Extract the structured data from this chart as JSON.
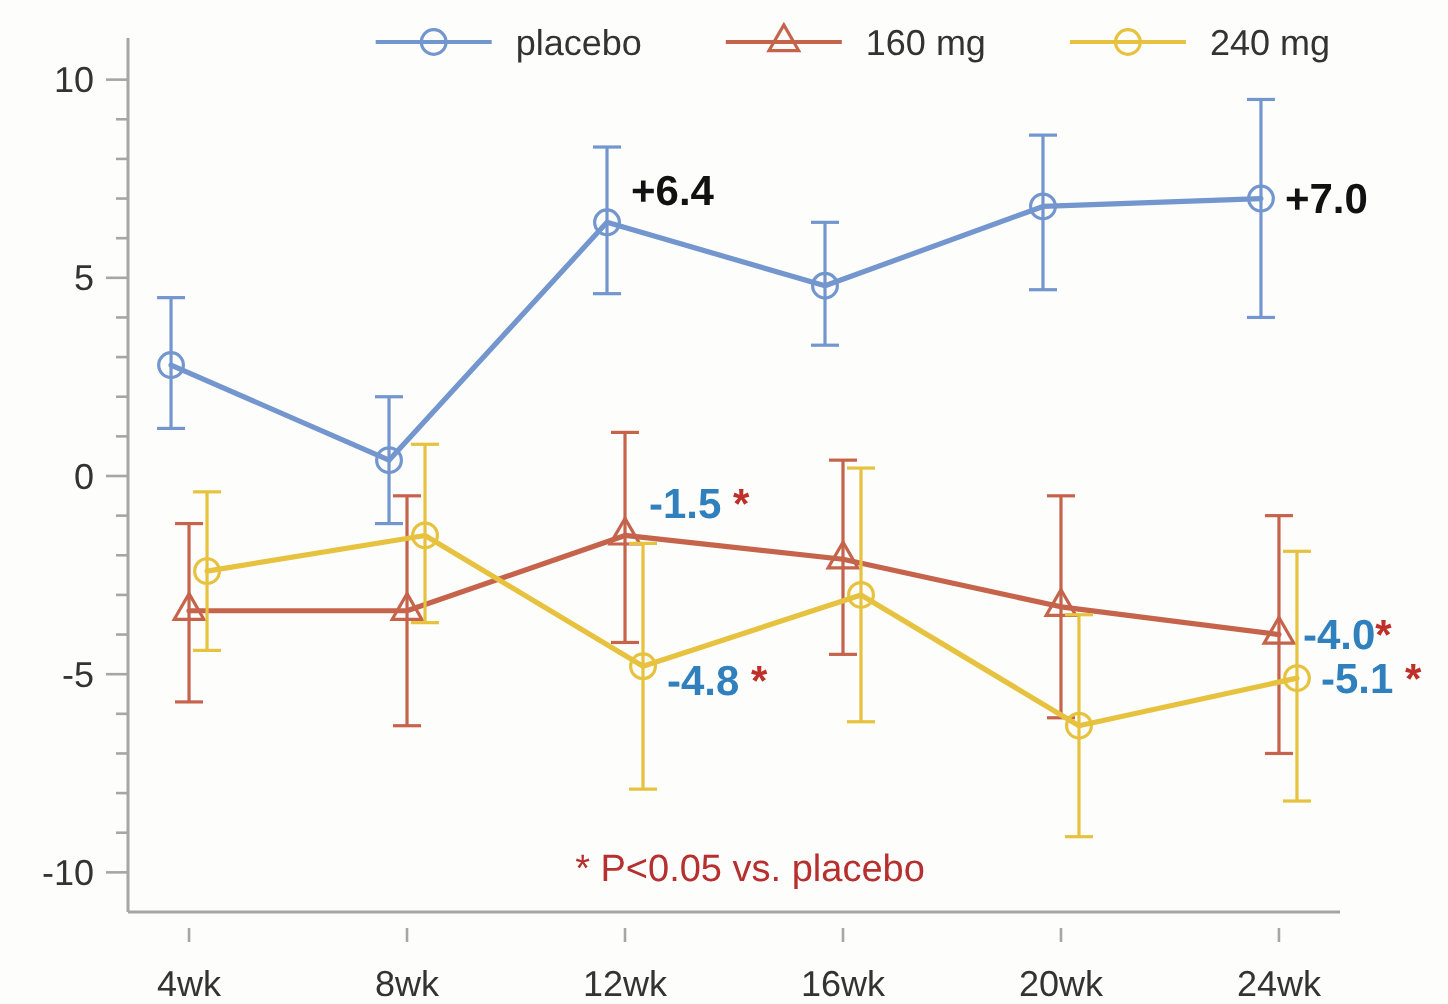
{
  "chart_data": {
    "type": "line",
    "categories": [
      "4wk",
      "8wk",
      "12wk",
      "16wk",
      "20wk",
      "24wk"
    ],
    "series": [
      {
        "name": "placebo",
        "color": "#7396cf",
        "marker": "circle",
        "values": [
          2.8,
          0.4,
          6.4,
          4.8,
          6.8,
          7.0
        ],
        "errors": [
          [
            1.2,
            4.5
          ],
          [
            -1.2,
            2.0
          ],
          [
            4.6,
            8.3
          ],
          [
            3.3,
            6.4
          ],
          [
            4.7,
            8.6
          ],
          [
            4.0,
            9.5
          ]
        ],
        "value_labels": [
          null,
          null,
          "+6.4",
          null,
          null,
          "+7.0"
        ]
      },
      {
        "name": "160 mg",
        "color": "#c5634b",
        "marker": "triangle",
        "values": [
          -3.4,
          -3.4,
          -1.5,
          -2.1,
          -3.3,
          -4.0
        ],
        "errors": [
          [
            -5.7,
            -1.2
          ],
          [
            -6.3,
            -0.5
          ],
          [
            -4.2,
            1.1
          ],
          [
            -4.5,
            0.4
          ],
          [
            -6.1,
            -0.5
          ],
          [
            -7.0,
            -1.0
          ]
        ],
        "value_labels": [
          null,
          null,
          "-1.5 *",
          null,
          null,
          "-4.0*"
        ]
      },
      {
        "name": "240 mg",
        "color": "#e6c23e",
        "marker": "circle",
        "values": [
          -2.4,
          -1.5,
          -4.8,
          -3.0,
          -6.3,
          -5.1
        ],
        "errors": [
          [
            -4.4,
            -0.4
          ],
          [
            -3.7,
            0.8
          ],
          [
            -7.9,
            -1.7
          ],
          [
            -6.2,
            0.2
          ],
          [
            -9.1,
            -3.5
          ],
          [
            -8.2,
            -1.9
          ]
        ],
        "value_labels": [
          null,
          null,
          "-4.8 *",
          null,
          null,
          "-5.1 *"
        ]
      }
    ],
    "ylim": [
      -11,
      11
    ],
    "yticks": [
      -10,
      {
        "value": -9,
        "label": null
      },
      {
        "value": -8,
        "label": null
      },
      {
        "value": -7,
        "label": null
      },
      {
        "value": -6,
        "label": null
      },
      -5,
      {
        "value": -4,
        "label": null
      },
      {
        "value": -3,
        "label": null
      },
      {
        "value": -2,
        "label": null
      },
      {
        "value": -1,
        "label": null
      },
      0,
      {
        "value": 1,
        "label": null
      },
      {
        "value": 2,
        "label": null
      },
      {
        "value": 3,
        "label": null
      },
      {
        "value": 4,
        "label": null
      },
      5,
      {
        "value": 6,
        "label": null
      },
      {
        "value": 7,
        "label": null
      },
      {
        "value": 8,
        "label": null
      },
      {
        "value": 9,
        "label": null
      },
      10
    ],
    "legend": "top",
    "line_style": "solid",
    "annotations": [
      "* P<0.05 vs. placebo"
    ]
  }
}
